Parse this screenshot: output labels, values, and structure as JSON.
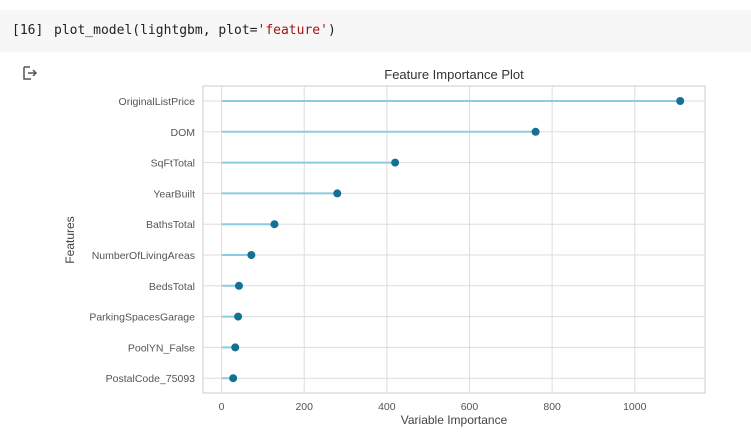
{
  "cell": {
    "prompt": "[16]",
    "code_before": "plot_model(lightgbm, plot=",
    "code_string": "'feature'",
    "code_after": ")"
  },
  "output": {
    "icon": "output-arrow-icon"
  },
  "chart_data": {
    "type": "lollipop",
    "title": "Feature Importance Plot",
    "xlabel": "Variable Importance",
    "ylabel": "Features",
    "xlim": [
      -45,
      1170
    ],
    "xticks": [
      0,
      200,
      400,
      600,
      800,
      1000
    ],
    "grid": true,
    "colors": {
      "stem": "#8dcbe0",
      "marker": "#137196",
      "grid": "#dddddd",
      "frame": "#cccccc"
    },
    "categories": [
      "OriginalListPrice",
      "DOM",
      "SqFtTotal",
      "YearBuilt",
      "BathsTotal",
      "NumberOfLivingAreas",
      "BedsTotal",
      "ParkingSpacesGarage",
      "PoolYN_False",
      "PostalCode_75093"
    ],
    "values": [
      1110,
      760,
      420,
      280,
      128,
      72,
      42,
      40,
      33,
      28
    ]
  }
}
